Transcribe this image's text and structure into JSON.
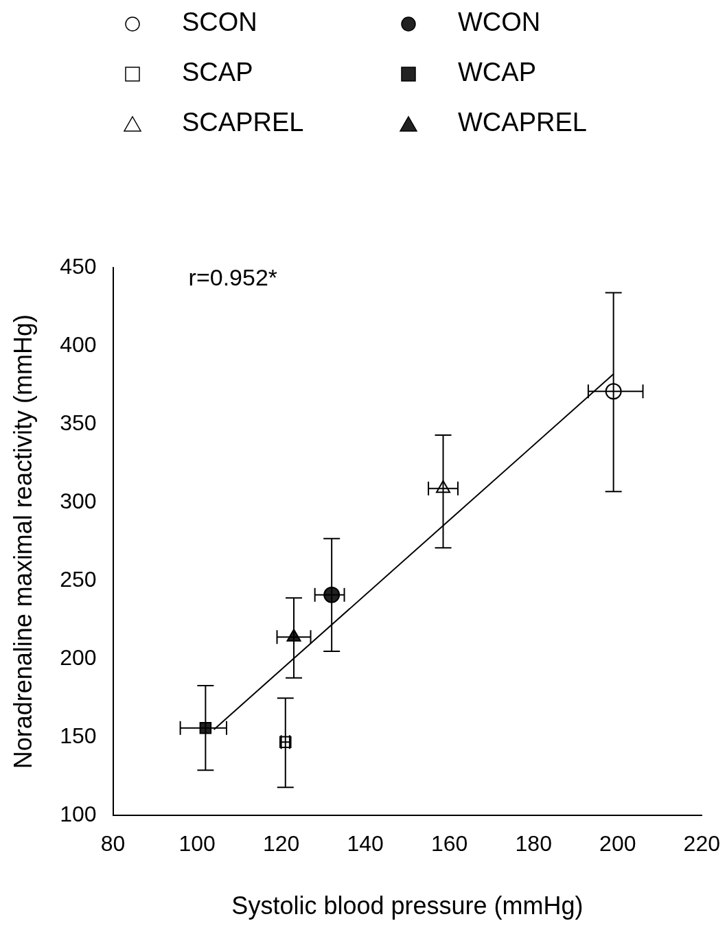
{
  "chart_data": {
    "type": "scatter",
    "xlabel": "Systolic blood pressure (mmHg)",
    "ylabel": "Noradrenaline maximal reactivity (mmHg)",
    "xlim": [
      80,
      220
    ],
    "xticks": [
      80,
      100,
      120,
      140,
      160,
      180,
      200,
      220
    ],
    "ylim": [
      100,
      450
    ],
    "yticks": [
      100,
      150,
      200,
      250,
      300,
      350,
      400,
      450
    ],
    "grid": false,
    "legend": "top",
    "annotations": [
      "r=0.952*"
    ],
    "series": [
      {
        "name": "SCON",
        "marker": "circle",
        "color": "#ffffff",
        "x": [
          199
        ],
        "values": [
          371
        ],
        "errors": [
          [
            307,
            434
          ]
        ],
        "xerrors": [
          [
            193,
            206
          ]
        ]
      },
      {
        "name": "SCAP",
        "marker": "square",
        "color": "#ffffff",
        "x": [
          121
        ],
        "values": [
          147
        ],
        "errors": [
          [
            118,
            175
          ]
        ],
        "xerrors": [
          [
            120,
            122
          ]
        ]
      },
      {
        "name": "SCAPREL",
        "marker": "triangle",
        "color": "#ffffff",
        "x": [
          158.5
        ],
        "values": [
          309
        ],
        "errors": [
          [
            271,
            343
          ]
        ],
        "xerrors": [
          [
            155,
            162
          ]
        ]
      },
      {
        "name": "WCON",
        "marker": "circle",
        "color": "#222222",
        "x": [
          132
        ],
        "values": [
          241
        ],
        "errors": [
          [
            205,
            277
          ]
        ],
        "xerrors": [
          [
            128,
            135
          ]
        ]
      },
      {
        "name": "WCAP",
        "marker": "square",
        "color": "#222222",
        "x": [
          102
        ],
        "values": [
          156
        ],
        "errors": [
          [
            129,
            183
          ]
        ],
        "xerrors": [
          [
            96,
            107
          ]
        ]
      },
      {
        "name": "WCAPREL",
        "marker": "triangle",
        "color": "#222222",
        "x": [
          123
        ],
        "values": [
          214
        ],
        "errors": [
          [
            188,
            239
          ]
        ],
        "xerrors": [
          [
            119,
            127
          ]
        ]
      },
      {
        "type": "line",
        "color": "#000000",
        "x": [
          104,
          199
        ],
        "values": [
          155,
          382
        ]
      }
    ]
  }
}
